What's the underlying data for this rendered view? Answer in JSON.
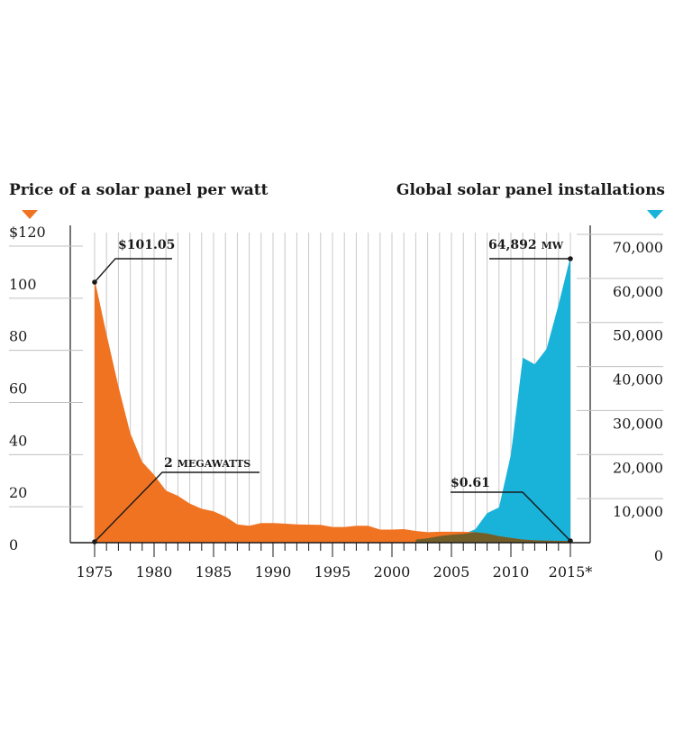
{
  "chart_data": {
    "type": "area",
    "left_title": "Price of a solar panel per watt",
    "right_title": "Global solar panel installations",
    "x_tick_labels": [
      "1975",
      "1980",
      "1985",
      "1990",
      "1995",
      "2000",
      "2005",
      "2010",
      "2015*"
    ],
    "left_axis": {
      "labels": [
        "$120",
        "100",
        "80",
        "60",
        "40",
        "20",
        "0"
      ],
      "range": [
        0,
        120
      ]
    },
    "right_axis": {
      "labels": [
        "70,000",
        "60,000",
        "50,000",
        "40,000",
        "30,000",
        "20,000",
        "10,000",
        "0"
      ],
      "range": [
        0,
        70000
      ]
    },
    "series": [
      {
        "name": "Price of a solar panel per watt",
        "unit": "$ per watt",
        "color": "#f07322",
        "x": [
          1975,
          1976,
          1977,
          1978,
          1979,
          1980,
          1981,
          1982,
          1983,
          1984,
          1985,
          1986,
          1987,
          1988,
          1989,
          1990,
          1991,
          1992,
          1993,
          1994,
          1995,
          1996,
          1997,
          1998,
          1999,
          2000,
          2001,
          2002,
          2003,
          2004,
          2005,
          2006,
          2007,
          2008,
          2009,
          2010,
          2011,
          2012,
          2013,
          2014,
          2015
        ],
        "values": [
          101.05,
          80,
          60,
          42,
          31,
          26,
          20,
          18,
          15,
          13,
          12,
          10,
          7,
          6.5,
          7.5,
          7.5,
          7.3,
          7,
          6.9,
          6.8,
          6,
          6,
          6.5,
          6.5,
          5,
          5,
          5.2,
          4.5,
          4,
          4.2,
          4.2,
          4.2,
          4,
          3.5,
          2.5,
          1.8,
          1.2,
          0.9,
          0.8,
          0.7,
          0.61
        ]
      },
      {
        "name": "Global solar panel installations",
        "unit": "MW",
        "color": "#19b2d8",
        "x": [
          1975,
          1976,
          1977,
          1978,
          1979,
          1980,
          1981,
          1982,
          1983,
          1984,
          1985,
          1986,
          1987,
          1988,
          1989,
          1990,
          1991,
          1992,
          1993,
          1994,
          1995,
          1996,
          1997,
          1998,
          1999,
          2000,
          2001,
          2002,
          2003,
          2004,
          2005,
          2006,
          2007,
          2008,
          2009,
          2010,
          2011,
          2012,
          2013,
          2014,
          2015
        ],
        "values": [
          2,
          3,
          5,
          8,
          10,
          12,
          15,
          20,
          25,
          30,
          35,
          40,
          45,
          50,
          55,
          60,
          70,
          80,
          90,
          100,
          120,
          150,
          200,
          250,
          300,
          350,
          500,
          700,
          1000,
          1500,
          1800,
          2000,
          3000,
          6700,
          8000,
          20000,
          42000,
          40500,
          44000,
          54000,
          64892
        ]
      }
    ],
    "overlap_color": "#5a5a2a",
    "annotations": {
      "price_start": "$101.05",
      "install_end": "64,892",
      "install_end_unit": "MW",
      "install_start_value": "2",
      "install_start_unit": "MEGAWATTS",
      "price_end": "$0.61"
    }
  }
}
